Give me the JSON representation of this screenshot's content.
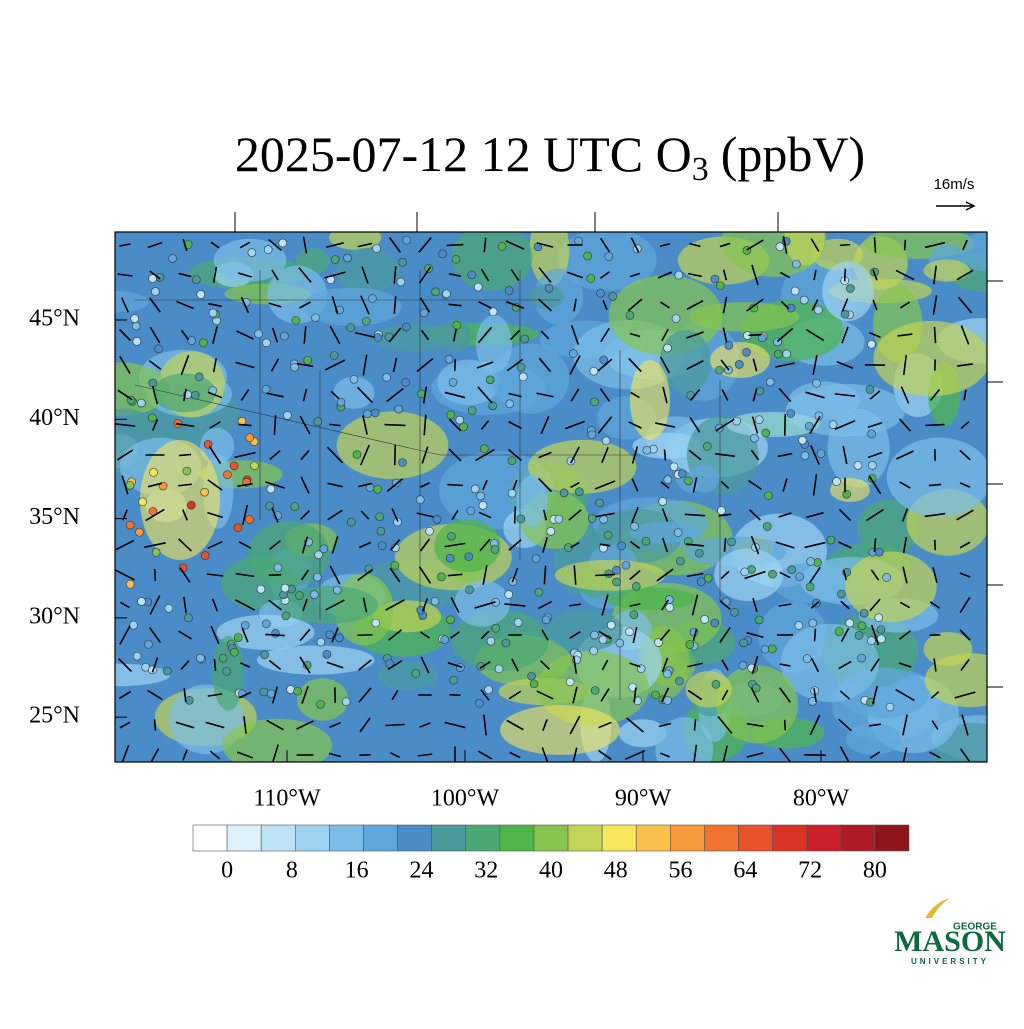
{
  "title": {
    "text": "2025-07-12 12 UTC O",
    "subscript": "3",
    "unit": "(ppbV)"
  },
  "vector_reference": "16m/s",
  "map": {
    "lat_labels": [
      "45°N",
      "40°N",
      "35°N",
      "30°N",
      "25°N"
    ],
    "lon_labels": [
      "110°W",
      "100°W",
      "90°W",
      "80°W"
    ]
  },
  "colorbar": {
    "colors": [
      "#ffffff",
      "#dff1fb",
      "#bfe3f6",
      "#9dd3f1",
      "#7bbde8",
      "#5ea6dc",
      "#4a8cc8",
      "#4a9a9c",
      "#4aa874",
      "#4db54a",
      "#86c44e",
      "#c2d356",
      "#f7e65a",
      "#f9c04c",
      "#f89a3c",
      "#f2732e",
      "#e8522b",
      "#dc3328",
      "#cc1f29",
      "#b01a25",
      "#8c1619"
    ],
    "ticks": [
      0,
      8,
      16,
      24,
      32,
      40,
      48,
      56,
      64,
      72,
      80
    ]
  },
  "logo": {
    "top": "GEORGE",
    "name": "MASON",
    "bottom": "UNIVERSITY"
  }
}
